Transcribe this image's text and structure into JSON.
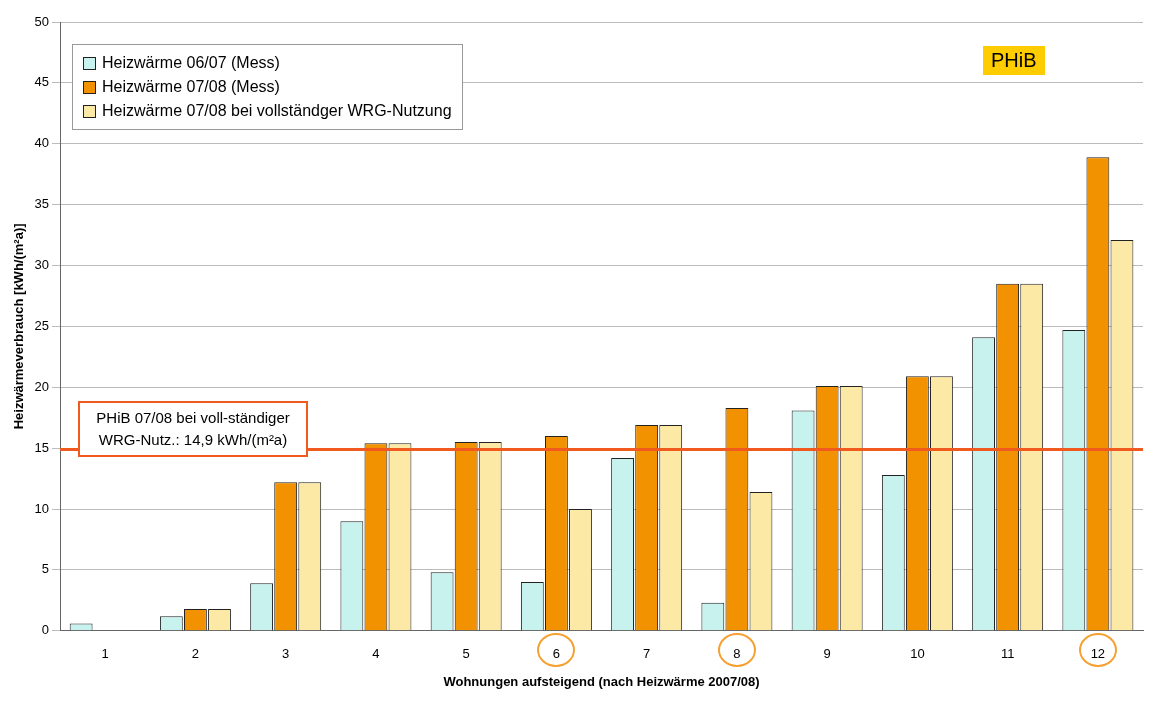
{
  "chart_data": {
    "type": "bar",
    "xlabel": "Wohnungen aufsteigend (nach Heizwärme 2007/08)",
    "ylabel": "Heizwärmeverbrauch [kWh/(m²a)]",
    "categories": [
      "1",
      "2",
      "3",
      "4",
      "5",
      "6",
      "7",
      "8",
      "9",
      "10",
      "11",
      "12"
    ],
    "series": [
      {
        "name": "Heizwärme 06/07 (Mess)",
        "color": "#c8f2ee",
        "values": [
          0.6,
          1.2,
          3.9,
          9.0,
          4.8,
          4.0,
          14.2,
          2.3,
          18.1,
          12.8,
          24.1,
          24.7
        ]
      },
      {
        "name": "Heizwärme 07/08 (Mess)",
        "color": "#f39200",
        "values": [
          0,
          1.8,
          12.2,
          15.4,
          15.5,
          16.0,
          16.9,
          18.3,
          20.1,
          20.9,
          28.5,
          38.9
        ]
      },
      {
        "name": "Heizwärme 07/08 bei vollständger WRG-Nutzung",
        "color": "#fde9a6",
        "values": [
          0,
          1.8,
          12.2,
          15.4,
          15.5,
          10.0,
          16.9,
          11.4,
          20.1,
          20.9,
          28.5,
          32.1
        ]
      }
    ],
    "ylim": [
      0,
      50
    ],
    "yticks": [
      0,
      5,
      10,
      15,
      20,
      25,
      30,
      35,
      40,
      45,
      50
    ],
    "grid": "y",
    "legend": "top left",
    "ref_lines": [
      {
        "axis": "y",
        "value": 14.9,
        "label": "PHiB 07/08 bei voll-ständiger WRG-Nutz.: 14,9 kWh/(m²a)",
        "color": "#f05a1e"
      }
    ],
    "annotations": [
      "PHiB"
    ]
  }
}
